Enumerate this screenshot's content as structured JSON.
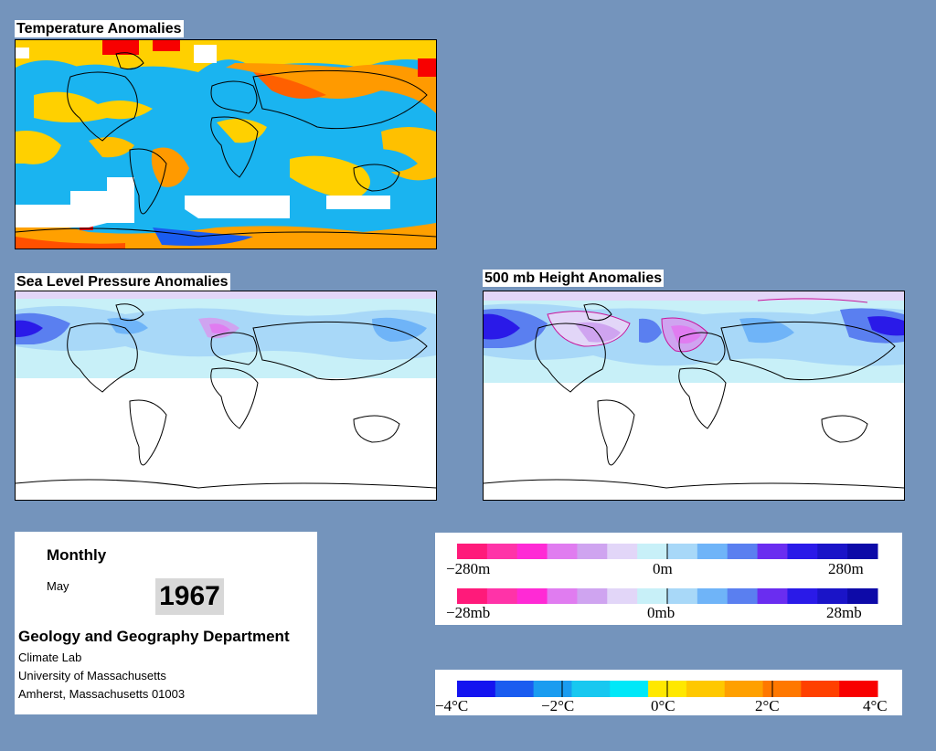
{
  "panels": {
    "temperature_title": "Temperature Anomalies",
    "slp_title": "Sea Level Pressure Anomalies",
    "height_title": "500 mb Height Anomalies"
  },
  "info": {
    "period": "Monthly",
    "month": "May",
    "year": "1967",
    "department": "Geology and Geography Department",
    "lab": "Climate Lab",
    "university": "University of Massachusetts",
    "address": "Amherst, Massachusetts 01003"
  },
  "legends": {
    "height": {
      "labels": [
        "−280m",
        "0m",
        "280m"
      ]
    },
    "pressure": {
      "labels": [
        "−28mb",
        "0mb",
        "28mb"
      ]
    },
    "temperature": {
      "labels": [
        "−4°C",
        "−2°C",
        "0°C",
        "2°C",
        "4°C"
      ]
    }
  },
  "colors": {
    "background": "#7494bc",
    "anomaly_scale": [
      "#ff1a7a",
      "#ff33a8",
      "#ff2ad5",
      "#e07cf0",
      "#cfa4f0",
      "#e2d6f8",
      "#c8f0f8",
      "#a8d8f8",
      "#6fb4f8",
      "#5a7ff0",
      "#6a2df0",
      "#2a1ae8",
      "#1a14c8",
      "#0d0aa8"
    ],
    "temperature_scale": [
      "#1414f0",
      "#1a5cf0",
      "#1a9cf0",
      "#18c8f0",
      "#00e8f8",
      "#ffe800",
      "#ffc800",
      "#ffa000",
      "#ff7800",
      "#ff4000",
      "#f80000"
    ]
  }
}
